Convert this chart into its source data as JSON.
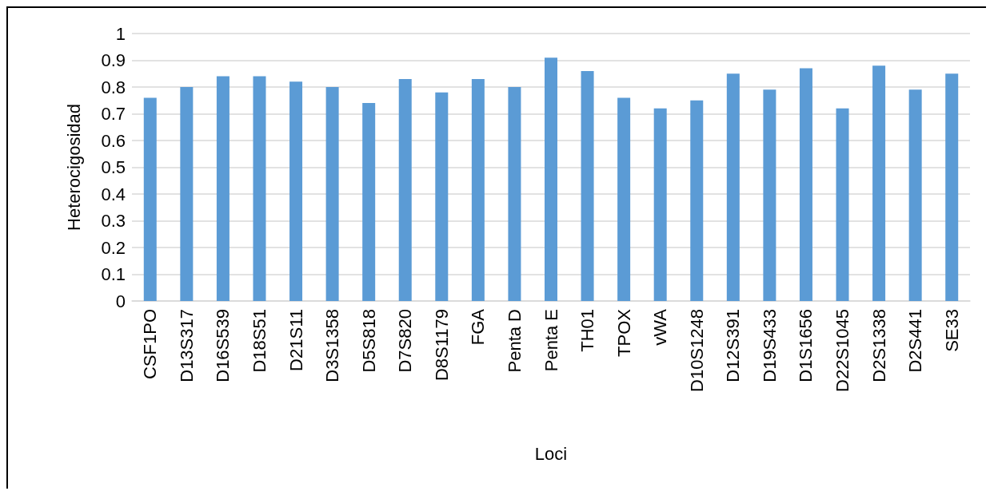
{
  "chart_data": {
    "type": "bar",
    "xlabel": "Loci",
    "ylabel": "Heterocigosidad",
    "categories": [
      "CSF1PO",
      "D13S317",
      "D16S539",
      "D18S51",
      "D21S11",
      "D3S1358",
      "D5S818",
      "D7S820",
      "D8S1179",
      "FGA",
      "Penta D",
      "Penta E",
      "TH01",
      "TPOX",
      "vWA",
      "D10S1248",
      "D12S391",
      "D19S433",
      "D1S1656",
      "D22S1045",
      "D2S1338",
      "D2S441",
      "SE33"
    ],
    "values": [
      0.76,
      0.8,
      0.84,
      0.84,
      0.82,
      0.8,
      0.74,
      0.83,
      0.78,
      0.83,
      0.8,
      0.91,
      0.86,
      0.76,
      0.72,
      0.75,
      0.85,
      0.79,
      0.87,
      0.72,
      0.88,
      0.79,
      0.85
    ],
    "color": "#5b9bd5",
    "ylim": [
      0,
      1
    ],
    "yticks": [
      0,
      0.1,
      0.2,
      0.3,
      0.4,
      0.5,
      0.6,
      0.7,
      0.8,
      0.9,
      1
    ],
    "grid": "y"
  }
}
